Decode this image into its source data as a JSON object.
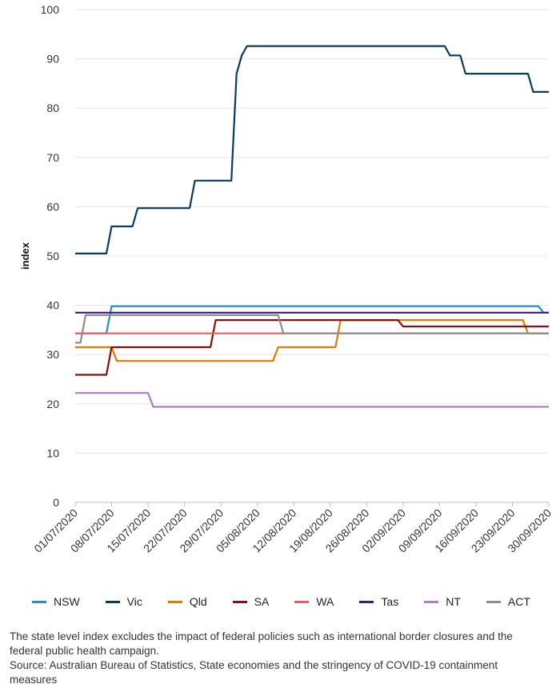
{
  "chart_data": {
    "type": "line",
    "title": "",
    "xlabel": "",
    "ylabel": "index",
    "ylim": [
      0,
      100
    ],
    "yticks": [
      0,
      10,
      20,
      30,
      40,
      50,
      60,
      70,
      80,
      90,
      100
    ],
    "x_start": "01/07/2020",
    "x_end": "30/09/2020",
    "xticks": [
      "01/07/2020",
      "08/07/2020",
      "15/07/2020",
      "22/07/2020",
      "29/07/2020",
      "05/08/2020",
      "12/08/2020",
      "19/08/2020",
      "26/08/2020",
      "02/09/2020",
      "09/09/2020",
      "16/09/2020",
      "23/09/2020",
      "30/09/2020"
    ],
    "grid": "horizontal",
    "legend_position": "bottom",
    "series": [
      {
        "name": "NSW",
        "color": "#1f8fc6",
        "points": [
          [
            "01/07/2020",
            34.3
          ],
          [
            "07/07/2020",
            34.3
          ],
          [
            "08/07/2020",
            39.8
          ],
          [
            "28/09/2020",
            39.8
          ],
          [
            "29/09/2020",
            38.5
          ],
          [
            "30/09/2020",
            38.5
          ]
        ]
      },
      {
        "name": "Vic",
        "color": "#0d3a5c",
        "points": [
          [
            "01/07/2020",
            50.5
          ],
          [
            "07/07/2020",
            50.5
          ],
          [
            "08/07/2020",
            56.0
          ],
          [
            "12/07/2020",
            56.0
          ],
          [
            "13/07/2020",
            59.7
          ],
          [
            "23/07/2020",
            59.7
          ],
          [
            "24/07/2020",
            65.3
          ],
          [
            "31/07/2020",
            65.3
          ],
          [
            "01/08/2020",
            87.0
          ],
          [
            "02/08/2020",
            90.7
          ],
          [
            "03/08/2020",
            92.6
          ],
          [
            "10/09/2020",
            92.6
          ],
          [
            "11/09/2020",
            90.7
          ],
          [
            "13/09/2020",
            90.7
          ],
          [
            "14/09/2020",
            87.0
          ],
          [
            "26/09/2020",
            87.0
          ],
          [
            "27/09/2020",
            83.3
          ],
          [
            "30/09/2020",
            83.3
          ]
        ]
      },
      {
        "name": "Qld",
        "color": "#e07b00",
        "points": [
          [
            "01/07/2020",
            31.5
          ],
          [
            "08/07/2020",
            31.5
          ],
          [
            "09/07/2020",
            28.7
          ],
          [
            "08/08/2020",
            28.7
          ],
          [
            "09/08/2020",
            31.5
          ],
          [
            "20/08/2020",
            31.5
          ],
          [
            "21/08/2020",
            37.0
          ],
          [
            "25/09/2020",
            37.0
          ],
          [
            "26/09/2020",
            34.3
          ],
          [
            "30/09/2020",
            34.3
          ]
        ]
      },
      {
        "name": "SA",
        "color": "#8b0e0e",
        "points": [
          [
            "01/07/2020",
            25.9
          ],
          [
            "07/07/2020",
            25.9
          ],
          [
            "08/07/2020",
            31.5
          ],
          [
            "27/07/2020",
            31.5
          ],
          [
            "28/07/2020",
            37.0
          ],
          [
            "01/09/2020",
            37.0
          ],
          [
            "02/09/2020",
            35.7
          ],
          [
            "30/09/2020",
            35.7
          ]
        ]
      },
      {
        "name": "WA",
        "color": "#f0595e",
        "points": [
          [
            "01/07/2020",
            34.3
          ],
          [
            "30/09/2020",
            34.3
          ]
        ]
      },
      {
        "name": "Tas",
        "color": "#3b1b7a",
        "points": [
          [
            "01/07/2020",
            38.5
          ],
          [
            "30/09/2020",
            38.5
          ]
        ]
      },
      {
        "name": "NT",
        "color": "#b07cc6",
        "points": [
          [
            "01/07/2020",
            22.2
          ],
          [
            "15/07/2020",
            22.2
          ],
          [
            "16/07/2020",
            19.4
          ],
          [
            "30/09/2020",
            19.4
          ]
        ]
      },
      {
        "name": "ACT",
        "color": "#8c8c8c",
        "points": [
          [
            "01/07/2020",
            32.4
          ],
          [
            "02/07/2020",
            32.4
          ],
          [
            "03/07/2020",
            38.0
          ],
          [
            "09/08/2020",
            38.0
          ],
          [
            "10/08/2020",
            34.3
          ],
          [
            "30/09/2020",
            34.3
          ]
        ]
      }
    ]
  },
  "footnote": {
    "line1": "The state level index excludes the impact of federal policies such as international border closures and the federal public health campaign.",
    "line2": "Source: Australian Bureau of Statistics, State economies and the stringency of COVID-19 containment measures"
  }
}
